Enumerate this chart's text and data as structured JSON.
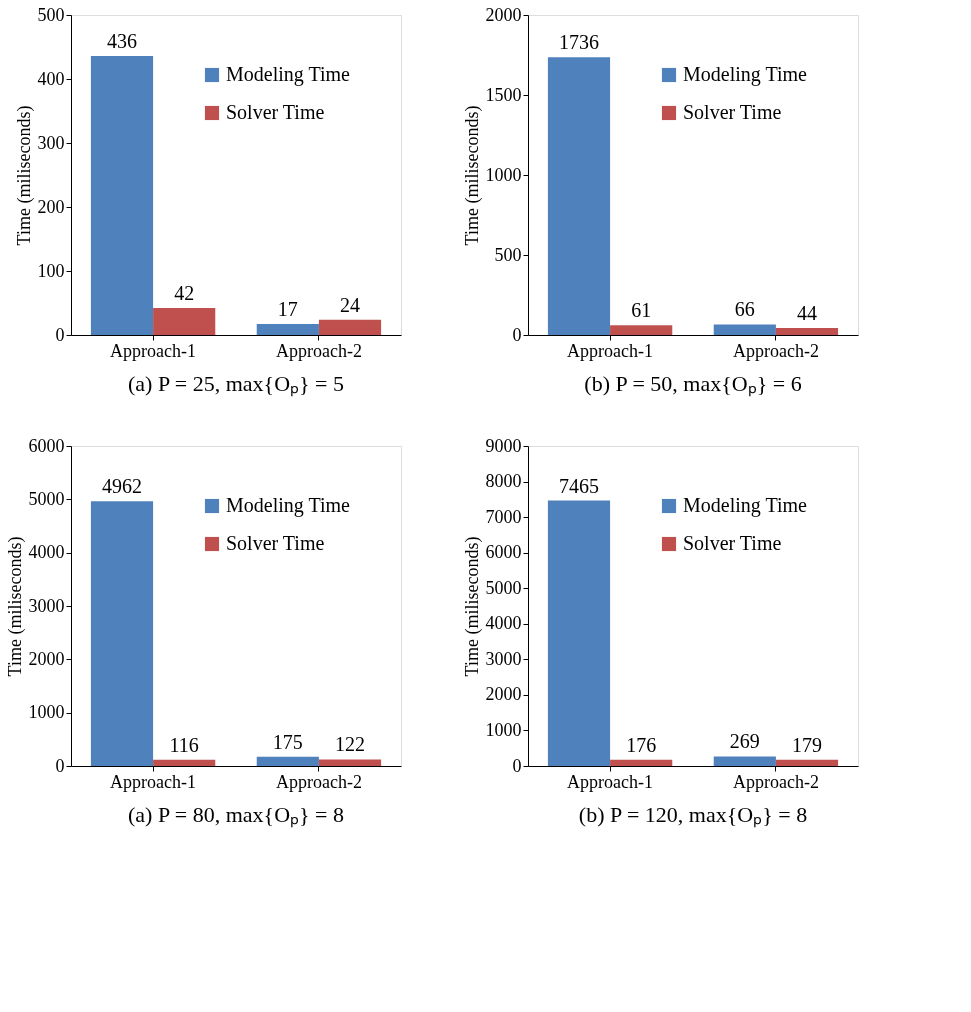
{
  "chart_data": [
    {
      "type": "bar",
      "title": "(a) P = 25, max{Oₚ} = 5",
      "ylabel": "Time (miliseconds)",
      "categories": [
        "Approach-1",
        "Approach-2"
      ],
      "series": [
        {
          "name": "Modeling Time",
          "color": "#4f81bd",
          "values": [
            436,
            17
          ]
        },
        {
          "name": "Solver Time",
          "color": "#c0504d",
          "values": [
            42,
            24
          ]
        }
      ],
      "ylim": [
        0,
        500
      ],
      "yticks": [
        0,
        100,
        200,
        300,
        400,
        500
      ],
      "grid": false,
      "legend": "top right",
      "data_labels": true
    },
    {
      "type": "bar",
      "title": "(b) P = 50, max{Oₚ} = 6",
      "ylabel": "Time (miliseconds)",
      "categories": [
        "Approach-1",
        "Approach-2"
      ],
      "series": [
        {
          "name": "Modeling Time",
          "color": "#4f81bd",
          "values": [
            1736,
            66
          ]
        },
        {
          "name": "Solver Time",
          "color": "#c0504d",
          "values": [
            61,
            44
          ]
        }
      ],
      "ylim": [
        0,
        2000
      ],
      "yticks": [
        0,
        500,
        1000,
        1500,
        2000
      ],
      "grid": false,
      "legend": "top right",
      "data_labels": true
    },
    {
      "type": "bar",
      "title": "(a) P = 80, max{Oₚ} = 8",
      "ylabel": "Time (miliseconds)",
      "categories": [
        "Approach-1",
        "Approach-2"
      ],
      "series": [
        {
          "name": "Modeling Time",
          "color": "#4f81bd",
          "values": [
            4962,
            175
          ]
        },
        {
          "name": "Solver Time",
          "color": "#c0504d",
          "values": [
            116,
            122
          ]
        }
      ],
      "ylim": [
        0,
        6000
      ],
      "yticks": [
        0,
        1000,
        2000,
        3000,
        4000,
        5000,
        6000
      ],
      "grid": false,
      "legend": "top right",
      "data_labels": true
    },
    {
      "type": "bar",
      "title": "(b) P = 120, max{Oₚ} = 8",
      "ylabel": "Time (miliseconds)",
      "categories": [
        "Approach-1",
        "Approach-2"
      ],
      "series": [
        {
          "name": "Modeling Time",
          "color": "#4f81bd",
          "values": [
            7465,
            269
          ]
        },
        {
          "name": "Solver Time",
          "color": "#c0504d",
          "values": [
            176,
            179
          ]
        }
      ],
      "ylim": [
        0,
        9000
      ],
      "yticks": [
        0,
        1000,
        2000,
        3000,
        4000,
        5000,
        6000,
        7000,
        8000,
        9000
      ],
      "grid": false,
      "legend": "top right",
      "data_labels": true
    }
  ]
}
